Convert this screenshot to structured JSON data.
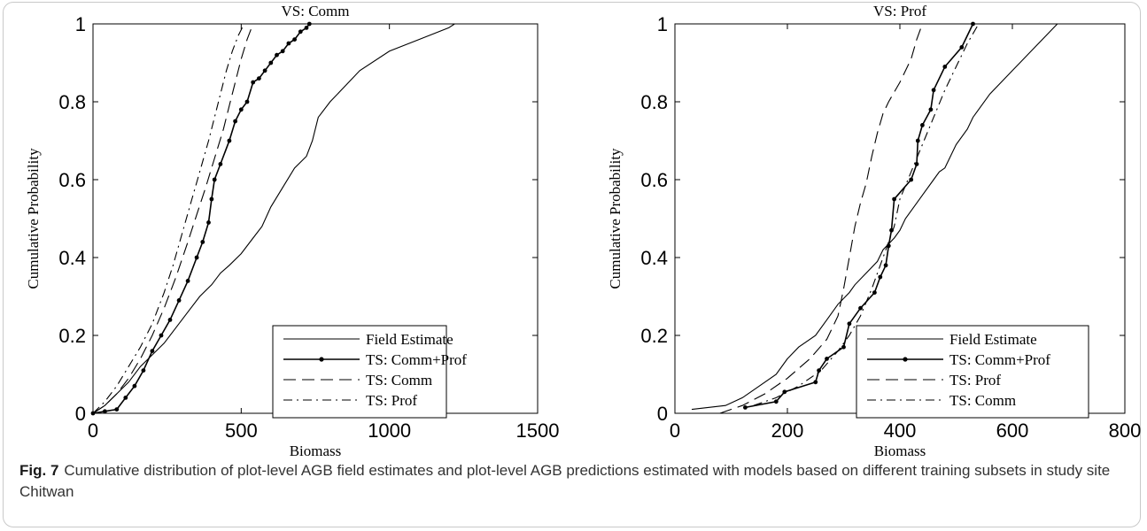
{
  "caption": {
    "label": "Fig. 7",
    "text": "Cumulative distribution of plot-level AGB field estimates and plot-level AGB predictions estimated with models based on different training subsets in study site Chitwan"
  },
  "chart_data": [
    {
      "type": "line",
      "title": "VS: Comm",
      "xlabel": "Biomass",
      "ylabel": "Cumulative Probability",
      "xlim": [
        0,
        1500
      ],
      "ylim": [
        0,
        1
      ],
      "xticks": [
        "0",
        "500",
        "1000",
        "1500"
      ],
      "yticks": [
        "0",
        "0.2",
        "0.4",
        "0.6",
        "0.8",
        "1"
      ],
      "legend_position": "bottom-right",
      "series": [
        {
          "name": "Field Estimate",
          "style": "solid",
          "markers": false,
          "x": [
            0,
            40,
            80,
            120,
            160,
            200,
            240,
            280,
            320,
            360,
            400,
            430,
            460,
            500,
            540,
            570,
            600,
            640,
            680,
            720,
            740,
            760,
            800,
            850,
            900,
            1000,
            1100,
            1200,
            1220
          ],
          "y": [
            0,
            0.02,
            0.05,
            0.08,
            0.12,
            0.15,
            0.18,
            0.22,
            0.26,
            0.3,
            0.33,
            0.36,
            0.38,
            0.41,
            0.45,
            0.48,
            0.53,
            0.58,
            0.63,
            0.66,
            0.7,
            0.76,
            0.8,
            0.84,
            0.88,
            0.93,
            0.96,
            0.99,
            1.0
          ]
        },
        {
          "name": "TS: Comm+Prof",
          "style": "solid-dot",
          "markers": true,
          "x": [
            0,
            40,
            80,
            110,
            140,
            170,
            200,
            230,
            260,
            290,
            320,
            350,
            370,
            390,
            400,
            410,
            430,
            460,
            480,
            500,
            520,
            540,
            560,
            580,
            600,
            620,
            640,
            660,
            680,
            700,
            720,
            730
          ],
          "y": [
            0,
            0.005,
            0.01,
            0.04,
            0.07,
            0.11,
            0.16,
            0.2,
            0.24,
            0.29,
            0.34,
            0.4,
            0.44,
            0.49,
            0.55,
            0.6,
            0.64,
            0.7,
            0.75,
            0.78,
            0.8,
            0.85,
            0.86,
            0.88,
            0.9,
            0.92,
            0.93,
            0.95,
            0.96,
            0.98,
            0.99,
            1.0
          ]
        },
        {
          "name": "TS: Comm",
          "style": "dashed",
          "markers": false,
          "x": [
            0,
            40,
            80,
            120,
            160,
            200,
            240,
            280,
            320,
            350,
            380,
            400,
            420,
            440,
            460,
            480,
            500,
            520,
            540
          ],
          "y": [
            0,
            0.02,
            0.05,
            0.09,
            0.14,
            0.2,
            0.27,
            0.35,
            0.44,
            0.51,
            0.58,
            0.63,
            0.68,
            0.73,
            0.79,
            0.85,
            0.91,
            0.96,
            1.0
          ]
        },
        {
          "name": "TS: Prof",
          "style": "dashdot",
          "markers": false,
          "x": [
            0,
            40,
            80,
            120,
            160,
            200,
            240,
            270,
            300,
            330,
            360,
            390,
            410,
            430,
            450,
            470,
            490,
            510
          ],
          "y": [
            0,
            0.03,
            0.07,
            0.12,
            0.17,
            0.23,
            0.31,
            0.38,
            0.46,
            0.54,
            0.62,
            0.7,
            0.76,
            0.82,
            0.88,
            0.93,
            0.97,
            1.0
          ]
        }
      ]
    },
    {
      "type": "line",
      "title": "VS: Prof",
      "xlabel": "Biomass",
      "ylabel": "Cumulative Probability",
      "xlim": [
        0,
        800
      ],
      "ylim": [
        0,
        1
      ],
      "xticks": [
        "0",
        "200",
        "400",
        "600",
        "800"
      ],
      "yticks": [
        "0",
        "0.2",
        "0.4",
        "0.6",
        "0.8",
        "1"
      ],
      "legend_position": "bottom-right",
      "series": [
        {
          "name": "Field Estimate",
          "style": "solid",
          "markers": false,
          "x": [
            30,
            90,
            120,
            150,
            180,
            200,
            220,
            250,
            270,
            290,
            310,
            320,
            340,
            360,
            370,
            390,
            400,
            410,
            420,
            440,
            460,
            470,
            480,
            500,
            520,
            530,
            560,
            600,
            640,
            680
          ],
          "y": [
            0.01,
            0.02,
            0.04,
            0.07,
            0.1,
            0.14,
            0.17,
            0.2,
            0.24,
            0.28,
            0.31,
            0.33,
            0.36,
            0.39,
            0.42,
            0.45,
            0.47,
            0.5,
            0.52,
            0.56,
            0.6,
            0.62,
            0.63,
            0.69,
            0.73,
            0.76,
            0.82,
            0.88,
            0.94,
            1.0
          ]
        },
        {
          "name": "TS: Comm+Prof",
          "style": "solid-dot",
          "markers": true,
          "x": [
            125,
            180,
            195,
            250,
            256,
            270,
            300,
            310,
            330,
            355,
            365,
            375,
            380,
            385,
            390,
            420,
            430,
            432,
            440,
            455,
            460,
            480,
            510,
            530
          ],
          "y": [
            0.015,
            0.03,
            0.055,
            0.08,
            0.11,
            0.14,
            0.17,
            0.23,
            0.27,
            0.31,
            0.35,
            0.38,
            0.43,
            0.47,
            0.55,
            0.6,
            0.64,
            0.7,
            0.74,
            0.78,
            0.83,
            0.89,
            0.94,
            1.0
          ]
        },
        {
          "name": "TS: Prof",
          "style": "dashed",
          "markers": false,
          "x": [
            80,
            120,
            160,
            200,
            240,
            270,
            290,
            300,
            310,
            320,
            330,
            340,
            350,
            360,
            370,
            380,
            400,
            420,
            430,
            440
          ],
          "y": [
            0,
            0.02,
            0.05,
            0.09,
            0.14,
            0.19,
            0.25,
            0.32,
            0.4,
            0.48,
            0.54,
            0.59,
            0.66,
            0.72,
            0.77,
            0.8,
            0.85,
            0.91,
            0.96,
            1.0
          ]
        },
        {
          "name": "TS: Comm",
          "style": "dashdot",
          "markers": false,
          "x": [
            140,
            180,
            220,
            260,
            290,
            310,
            330,
            350,
            370,
            390,
            400,
            420,
            440,
            460,
            480,
            500,
            520,
            540
          ],
          "y": [
            0.02,
            0.04,
            0.07,
            0.11,
            0.16,
            0.2,
            0.25,
            0.32,
            0.4,
            0.48,
            0.55,
            0.62,
            0.69,
            0.76,
            0.83,
            0.89,
            0.95,
            1.0
          ]
        }
      ]
    }
  ]
}
